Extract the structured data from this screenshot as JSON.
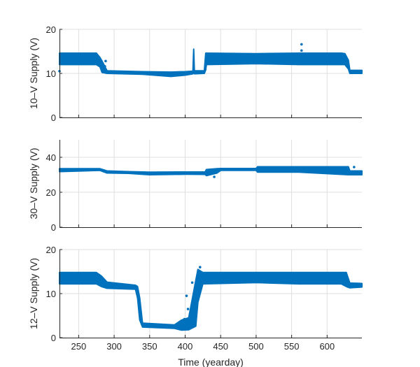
{
  "chart_data": [
    {
      "type": "scatter",
      "ylabel": "10–V Supply (V)",
      "xlabel": "",
      "xlim": [
        223,
        649
      ],
      "ylim": [
        0,
        20
      ],
      "yticks": [
        0,
        10,
        20
      ],
      "xticks": [
        250,
        300,
        350,
        400,
        450,
        500,
        550,
        600
      ],
      "show_xticklabels": false,
      "grid": true,
      "color": "#0072BD",
      "band": {
        "x": [
          223,
          275,
          280,
          283,
          290,
          340,
          380,
          400,
          411,
          412,
          413,
          427,
          429,
          430,
          500,
          560,
          620,
          625,
          630,
          632,
          649
        ],
        "lo": [
          12,
          12,
          11.5,
          10.2,
          10,
          9.8,
          9.3,
          9.6,
          9.9,
          10.5,
          9.9,
          10,
          10.8,
          12,
          12.2,
          12,
          12,
          12,
          11,
          10,
          10
        ],
        "hi": [
          14.6,
          14.6,
          13.6,
          12.8,
          10.6,
          10.4,
          10.3,
          10.4,
          10.5,
          15.5,
          10.6,
          10.6,
          14.6,
          14.6,
          14.5,
          14.6,
          14.6,
          14.5,
          13,
          10.7,
          10.7
        ]
      },
      "outliers": [
        [
          223,
          10.5
        ],
        [
          564,
          16.6
        ],
        [
          564,
          15.2
        ],
        [
          288,
          12.8
        ],
        [
          287,
          11.6
        ]
      ]
    },
    {
      "type": "scatter",
      "ylabel": "30–V Supply (V)",
      "xlabel": "",
      "xlim": [
        223,
        649
      ],
      "ylim": [
        0,
        50
      ],
      "yticks": [
        0,
        20,
        40
      ],
      "yticklabels_shown": [
        0,
        20,
        40
      ],
      "xticks": [
        250,
        300,
        350,
        400,
        450,
        500,
        550,
        600
      ],
      "show_xticklabels": false,
      "grid": true,
      "color": "#0072BD",
      "band": {
        "x": [
          223,
          280,
          290,
          320,
          350,
          400,
          428,
          430,
          445,
          450,
          500,
          502,
          560,
          630,
          632,
          649
        ],
        "lo": [
          31.8,
          32.5,
          31,
          30.8,
          30,
          30.3,
          30.2,
          29.5,
          31,
          32.5,
          32.5,
          31.5,
          31.5,
          30,
          30,
          30
        ],
        "hi": [
          33.5,
          33.5,
          32.2,
          31.8,
          31.5,
          31.6,
          31.6,
          33,
          33.5,
          33.6,
          33.6,
          34.6,
          34.6,
          34.6,
          32.2,
          32.2
        ]
      },
      "outliers": [
        [
          441,
          28.8
        ],
        [
          638,
          34.4
        ]
      ]
    },
    {
      "type": "scatter",
      "ylabel": "12–V Supply (V)",
      "xlabel": "Time (yearday)",
      "xlim": [
        223,
        649
      ],
      "ylim": [
        0,
        20
      ],
      "yticks": [
        0,
        10,
        20
      ],
      "xticks": [
        250,
        300,
        350,
        400,
        450,
        500,
        550,
        600
      ],
      "show_xticklabels": true,
      "grid": true,
      "color": "#0072BD",
      "band": {
        "x": [
          223,
          275,
          282,
          290,
          330,
          333,
          336,
          340,
          385,
          395,
          405,
          415,
          418,
          425,
          500,
          560,
          620,
          627,
          632,
          649
        ],
        "lo": [
          12.2,
          12.2,
          11.6,
          11.2,
          11,
          9,
          4,
          2.4,
          2.1,
          1.7,
          1.8,
          2.6,
          8,
          12.2,
          12.5,
          12.2,
          12.2,
          11.6,
          11.3,
          11.5
        ],
        "hi": [
          14.8,
          14.8,
          14,
          12.6,
          11.9,
          11.6,
          9,
          3.3,
          2.9,
          4,
          4.5,
          13,
          15.5,
          14.8,
          14.8,
          14.8,
          14.8,
          14.8,
          12.4,
          12.3
        ]
      },
      "outliers": [
        [
          402,
          9.5
        ],
        [
          404,
          6.5
        ],
        [
          407,
          5.5
        ],
        [
          410,
          12.5
        ],
        [
          421,
          16
        ],
        [
          399,
          4.2
        ]
      ]
    }
  ]
}
